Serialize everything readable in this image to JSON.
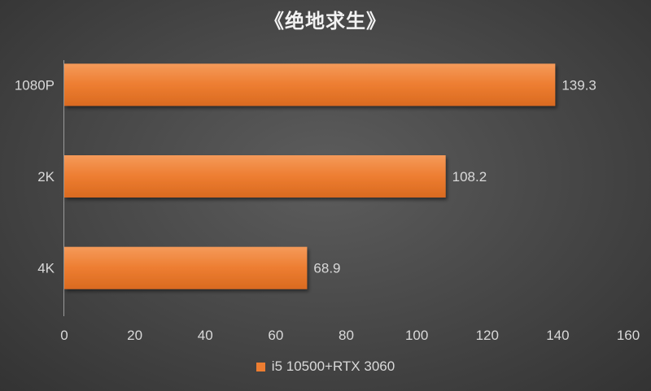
{
  "chart_data": {
    "type": "bar",
    "orientation": "horizontal",
    "title": "《绝地求生》",
    "categories": [
      "1080P",
      "2K",
      "4K"
    ],
    "series": [
      {
        "name": "i5 10500+RTX 3060",
        "values": [
          139.3,
          108.2,
          68.9
        ],
        "color": "#ed7d31"
      }
    ],
    "data_labels": [
      "139.3",
      "108.2",
      "68.9"
    ],
    "xlim": [
      0,
      160
    ],
    "x_ticks": [
      0,
      20,
      40,
      60,
      80,
      100,
      120,
      140,
      160
    ],
    "grid": false,
    "legend_position": "bottom",
    "colors": {
      "bar": "#ed7d31",
      "text": "#d9d9d9",
      "axis": "#9a9a9a"
    }
  }
}
